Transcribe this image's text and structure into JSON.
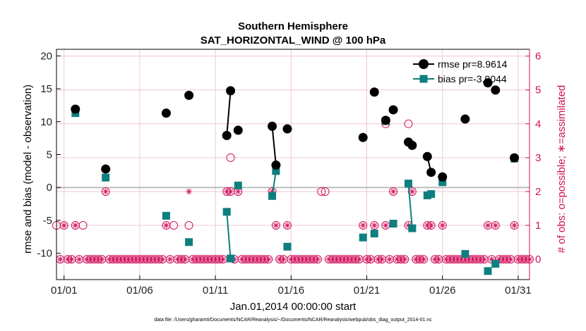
{
  "chart_data": {
    "type": "line",
    "title": "Southern Hemisphere",
    "subtitle": "SAT_HORIZONTAL_WIND @ 100 hPa",
    "xlabel": "Jan.01,2014 00:00:00 start",
    "ylabel": "rmse and bias (model - observation)",
    "y2label": "# of obs: o=possible; ∗=assimilated",
    "footnote": "data file: /Users/gharamti/Documents/NCAR/Reanalysis/~/Documents/NCAR/Reanalysis/webpub/obs_diag_output_2014-01.nc",
    "xlim": [
      0.5,
      31.75
    ],
    "ylim": [
      -14,
      21
    ],
    "y2lim": [
      -0.6,
      6.2
    ],
    "x_ticks": [
      {
        "value": 1,
        "label": "01/01"
      },
      {
        "value": 6,
        "label": "01/06"
      },
      {
        "value": 11,
        "label": "01/11"
      },
      {
        "value": 16,
        "label": "01/16"
      },
      {
        "value": 21,
        "label": "01/21"
      },
      {
        "value": 26,
        "label": "01/26"
      },
      {
        "value": 31,
        "label": "01/31"
      }
    ],
    "y_ticks": [
      -10,
      -5,
      0,
      5,
      10,
      15,
      20
    ],
    "y2_ticks": [
      0,
      1,
      2,
      3,
      4,
      5,
      6
    ],
    "colors": {
      "rmse": "#000000",
      "bias": "#0e7f7f",
      "obs": "#d0105a",
      "grid": "#f2c6d6",
      "zero_line": "#bdbdbd"
    },
    "series": [
      {
        "name": "rmse",
        "legend": "rmse pr=8.9614",
        "marker": "circle",
        "segments": [
          [
            [
              1.75,
              11.9
            ]
          ],
          [
            [
              3.75,
              2.8
            ]
          ],
          [
            [
              7.75,
              11.3
            ]
          ],
          [
            [
              9.25,
              14.0
            ]
          ],
          [
            [
              11.75,
              7.9
            ],
            [
              12.0,
              14.7
            ]
          ],
          [
            [
              12.5,
              8.7
            ]
          ],
          [
            [
              14.75,
              9.3
            ],
            [
              15.0,
              3.4
            ]
          ],
          [
            [
              15.75,
              8.9
            ]
          ],
          [
            [
              20.75,
              7.6
            ]
          ],
          [
            [
              21.5,
              14.5
            ]
          ],
          [
            [
              22.25,
              10.2
            ]
          ],
          [
            [
              22.75,
              11.8
            ]
          ],
          [
            [
              23.75,
              6.9
            ],
            [
              24.0,
              6.4
            ]
          ],
          [
            [
              25.0,
              4.7
            ],
            [
              25.25,
              2.3
            ]
          ],
          [
            [
              26.0,
              1.6
            ]
          ],
          [
            [
              27.5,
              10.4
            ]
          ],
          [
            [
              29.0,
              15.9
            ]
          ],
          [
            [
              29.5,
              14.8
            ]
          ],
          [
            [
              30.75,
              4.5
            ]
          ]
        ]
      },
      {
        "name": "bias",
        "legend": "bias pr=-3.0044",
        "marker": "square",
        "segments": [
          [
            [
              1.75,
              11.3
            ]
          ],
          [
            [
              3.75,
              1.5
            ]
          ],
          [
            [
              7.75,
              -4.3
            ]
          ],
          [
            [
              9.25,
              -8.3
            ]
          ],
          [
            [
              11.75,
              -3.7
            ],
            [
              12.0,
              -10.8
            ]
          ],
          [
            [
              12.5,
              0.3
            ]
          ],
          [
            [
              14.75,
              -1.3
            ],
            [
              15.0,
              2.5
            ]
          ],
          [
            [
              15.75,
              -9.0
            ]
          ],
          [
            [
              20.75,
              -7.6
            ]
          ],
          [
            [
              21.5,
              -7.0
            ]
          ],
          [
            [
              22.25,
              10.1
            ]
          ],
          [
            [
              22.75,
              -5.5
            ]
          ],
          [
            [
              23.75,
              0.6
            ],
            [
              24.0,
              -6.2
            ]
          ],
          [
            [
              25.0,
              -1.2
            ],
            [
              25.25,
              -1.0
            ]
          ],
          [
            [
              26.0,
              0.8
            ]
          ],
          [
            [
              27.5,
              -10.1
            ]
          ],
          [
            [
              29.0,
              -12.7
            ]
          ],
          [
            [
              29.5,
              -11.6
            ]
          ],
          [
            [
              30.75,
              4.4
            ]
          ]
        ]
      }
    ],
    "obs_possible": [
      [
        0.5,
        1
      ],
      [
        1.0,
        1
      ],
      [
        1.75,
        1
      ],
      [
        2.25,
        1
      ],
      [
        3.75,
        2
      ],
      [
        7.75,
        1
      ],
      [
        8.25,
        1
      ],
      [
        9.25,
        1
      ],
      [
        11.75,
        2
      ],
      [
        12.0,
        3
      ],
      [
        12.0,
        2
      ],
      [
        12.5,
        2
      ],
      [
        14.75,
        2
      ],
      [
        15.0,
        1
      ],
      [
        15.75,
        1
      ],
      [
        18.0,
        2
      ],
      [
        18.25,
        2
      ],
      [
        20.75,
        1
      ],
      [
        21.5,
        1
      ],
      [
        22.25,
        1
      ],
      [
        22.25,
        4
      ],
      [
        22.75,
        2
      ],
      [
        23.75,
        4
      ],
      [
        23.75,
        1
      ],
      [
        24.0,
        2
      ],
      [
        25.0,
        1
      ],
      [
        25.25,
        1
      ],
      [
        26.0,
        1
      ],
      [
        27.5,
        0
      ],
      [
        29.0,
        1
      ],
      [
        29.5,
        1
      ],
      [
        30.75,
        1
      ]
    ],
    "obs_assimilated": [
      [
        1.0,
        1
      ],
      [
        1.75,
        1
      ],
      [
        3.75,
        2
      ],
      [
        7.75,
        1
      ],
      [
        9.25,
        2
      ],
      [
        11.75,
        2
      ],
      [
        12.0,
        2
      ],
      [
        12.5,
        2
      ],
      [
        14.75,
        2
      ],
      [
        15.0,
        1
      ],
      [
        15.75,
        1
      ],
      [
        20.75,
        1
      ],
      [
        21.5,
        1
      ],
      [
        22.25,
        1
      ],
      [
        22.75,
        2
      ],
      [
        23.75,
        1
      ],
      [
        24.0,
        2
      ],
      [
        25.0,
        1
      ],
      [
        25.25,
        1
      ],
      [
        26.0,
        1
      ],
      [
        27.5,
        0
      ],
      [
        29.0,
        1
      ],
      [
        29.5,
        1
      ],
      [
        30.75,
        1
      ]
    ]
  }
}
